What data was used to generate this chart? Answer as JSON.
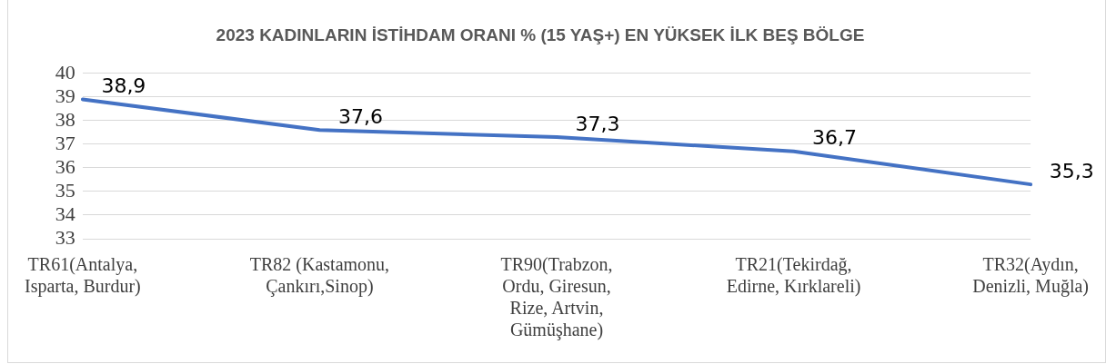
{
  "chart_data": {
    "type": "line",
    "title": "2023 KADINLARIN İSTİHDAM ORANI % (15 YAŞ+) EN YÜKSEK İLK BEŞ BÖLGE",
    "categories": [
      "TR61(Antalya, Isparta, Burdur)",
      "TR82 (Kastamonu, Çankırı,Sinop)",
      "TR90(Trabzon, Ordu, Giresun, Rize, Artvin, Gümüşhane)",
      "TR21(Tekirdağ, Edirne, Kırklareli)",
      "TR32(Aydın, Denizli, Muğla)"
    ],
    "series": [
      {
        "color": "#4472c4",
        "values": [
          38.9,
          37.6,
          37.3,
          36.7,
          35.3
        ],
        "value_labels": [
          "38,9",
          "37,6",
          "37,3",
          "36,7",
          "35,3"
        ]
      }
    ],
    "ylim": [
      33,
      40
    ],
    "yticks": [
      33,
      34,
      35,
      36,
      37,
      38,
      39,
      40
    ],
    "grid": "y",
    "legend": false,
    "marker": "none",
    "line_style": "solid"
  }
}
